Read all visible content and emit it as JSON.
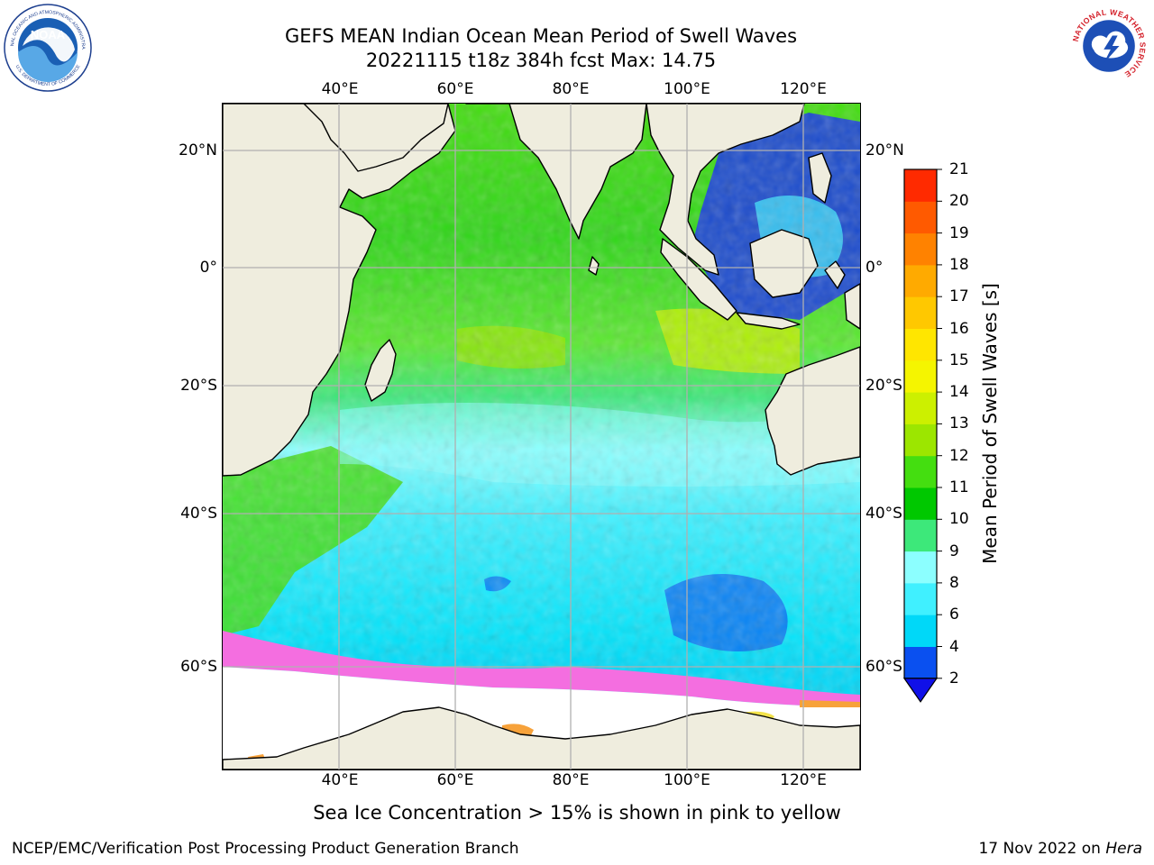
{
  "header": {
    "title_line1": "GEFS MEAN Indian Ocean Mean Period of Swell Waves",
    "title_line2": "20221115 t18z 384h fcst   Max: 14.75"
  },
  "map": {
    "lon_labels": [
      "40°E",
      "60°E",
      "80°E",
      "100°E",
      "120°E"
    ],
    "lat_labels": [
      "20°N",
      "0°",
      "20°S",
      "40°S",
      "60°S"
    ],
    "colors": {
      "land": "#efedde",
      "ice_free_white": "#ffffff",
      "gridline": "#b0b0b0",
      "coast": "#000000",
      "ice_pink": "#f46ee0",
      "ice_orange": "#f7a23a",
      "ice_yellow": "#f2e24a"
    }
  },
  "colorbar": {
    "title": "Mean Period of Swell Waves [s]",
    "tick_labels": [
      "2",
      "4",
      "6",
      "8",
      "9",
      "10",
      "11",
      "12",
      "13",
      "14",
      "15",
      "16",
      "17",
      "18",
      "19",
      "20",
      "21"
    ],
    "colors": [
      "#0a50f0",
      "#00d8f8",
      "#40f0ff",
      "#8cffff",
      "#3de87a",
      "#00c800",
      "#44de10",
      "#9ce600",
      "#ccf000",
      "#f5f500",
      "#ffe600",
      "#ffc800",
      "#ffaa00",
      "#ff8200",
      "#ff5a00",
      "#ff2a00"
    ],
    "under_color": "#1010e8"
  },
  "caption": "Sea Ice Concentration > 15% is shown in pink to yellow",
  "footer": {
    "left": "NCEP/EMC/Verification Post Processing Product Generation Branch",
    "right_prefix": "17 Nov 2022 on ",
    "right_host": "Hera"
  },
  "logos": {
    "noaa_text": "NOAA",
    "noaa_ring_top": "NATIONAL OCEANIC AND ATMOSPHERIC ADMINISTRATION",
    "noaa_ring_bottom": "U.S. DEPARTMENT OF COMMERCE",
    "nws_ring": "NATIONAL WEATHER SERVICE"
  }
}
